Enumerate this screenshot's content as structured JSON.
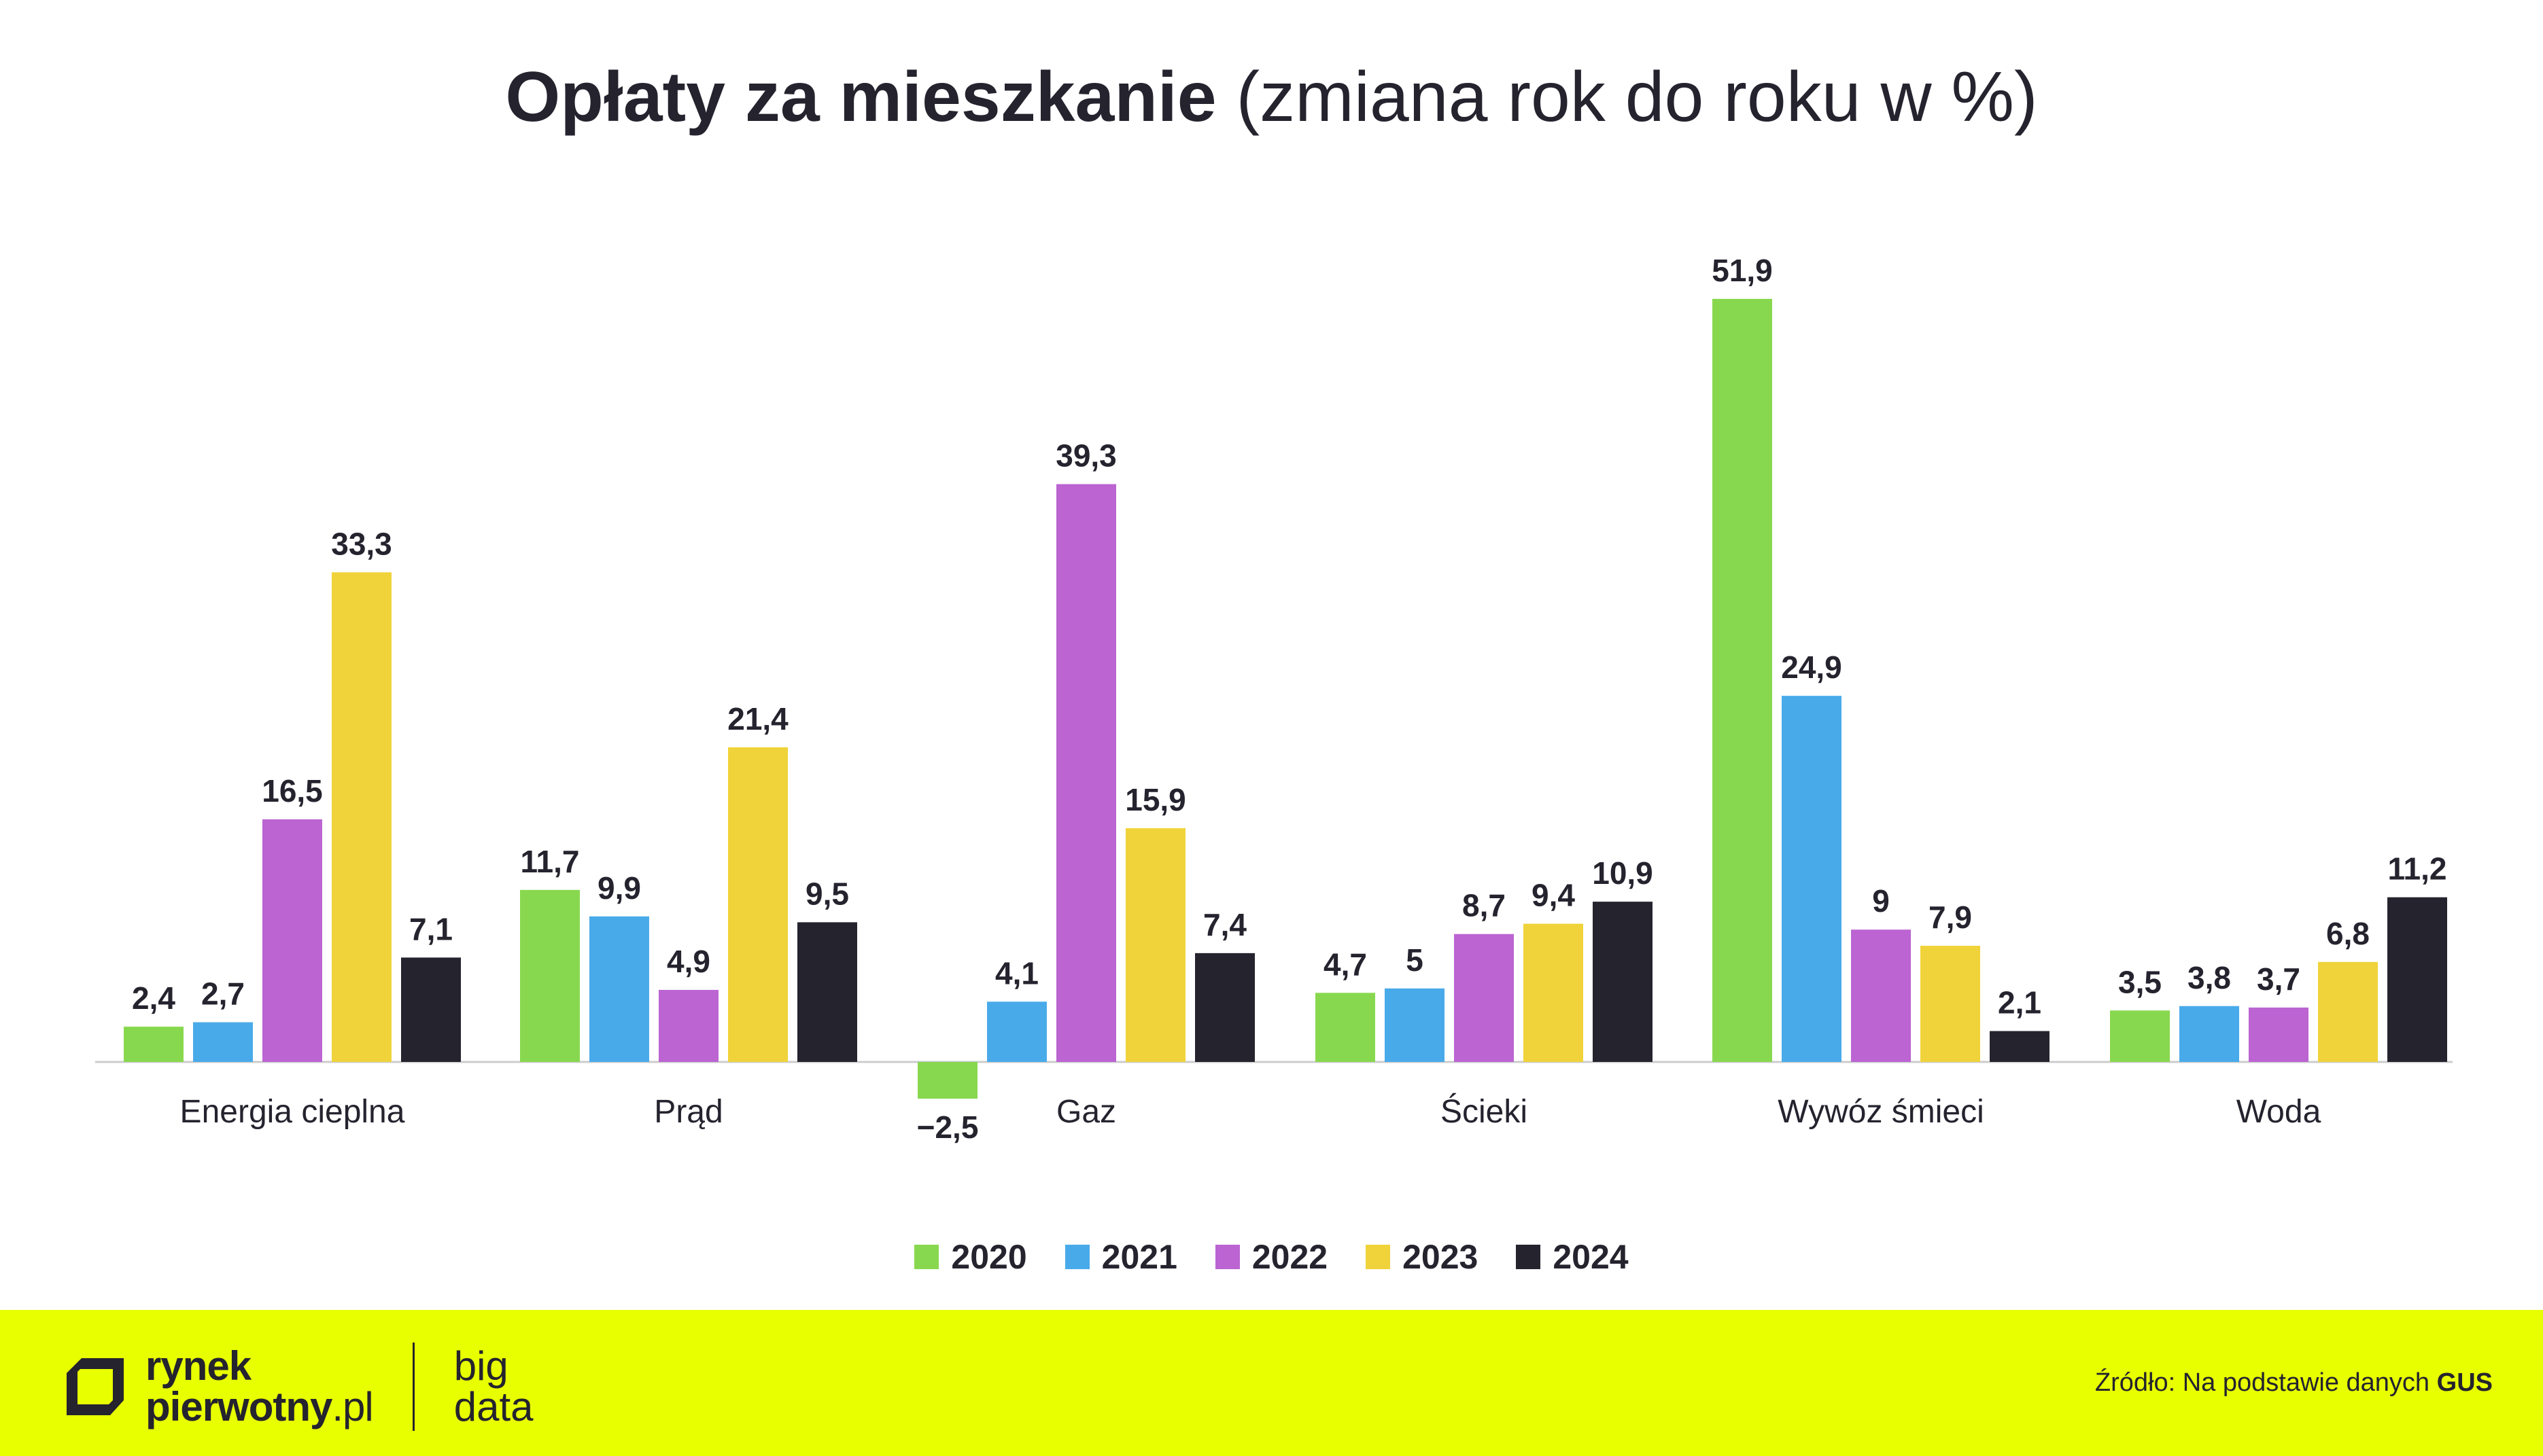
{
  "header": {
    "title_bold": "Opłaty za mieszkanie",
    "title_light": "(zmiana rok do roku w %)"
  },
  "colors": {
    "2020": "#88d84f",
    "2021": "#49aaea",
    "2022": "#bb64d2",
    "2023": "#f0d33a",
    "2024": "#24232e",
    "footer_bg": "#e8ff00",
    "text": "#24232e",
    "axis": "#cccccc"
  },
  "chart_data": {
    "type": "bar",
    "title": "Opłaty za mieszkanie (zmiana rok do roku w %)",
    "categories": [
      "Energia cieplna",
      "Prąd",
      "Gaz",
      "Ścieki",
      "Wywóz śmieci",
      "Woda"
    ],
    "series": [
      {
        "name": "2020",
        "values": [
          2.4,
          11.7,
          -2.5,
          4.7,
          51.9,
          3.5
        ],
        "labels": [
          "2,4",
          "11,7",
          "−2,5",
          "4,7",
          "51,9",
          "3,5"
        ]
      },
      {
        "name": "2021",
        "values": [
          2.7,
          9.9,
          4.1,
          5,
          24.9,
          3.8
        ],
        "labels": [
          "2,7",
          "9,9",
          "4,1",
          "5",
          "24,9",
          "3,8"
        ]
      },
      {
        "name": "2022",
        "values": [
          16.5,
          4.9,
          39.3,
          8.7,
          9,
          3.7
        ],
        "labels": [
          "16,5",
          "4,9",
          "39,3",
          "8,7",
          "9",
          "3,7"
        ]
      },
      {
        "name": "2023",
        "values": [
          33.3,
          21.4,
          15.9,
          9.4,
          7.9,
          6.8
        ],
        "labels": [
          "33,3",
          "21,4",
          "15,9",
          "9,4",
          "7,9",
          "6,8"
        ]
      },
      {
        "name": "2024",
        "values": [
          7.1,
          9.5,
          7.4,
          10.9,
          2.1,
          11.2
        ],
        "labels": [
          "7,1",
          "9,5",
          "7,4",
          "10,9",
          "2,1",
          "11,2"
        ]
      }
    ],
    "grid": false,
    "legend_position": "bottom"
  },
  "legend": [
    {
      "label": "2020",
      "color": "#88d84f"
    },
    {
      "label": "2021",
      "color": "#49aaea"
    },
    {
      "label": "2022",
      "color": "#bb64d2"
    },
    {
      "label": "2023",
      "color": "#f0d33a"
    },
    {
      "label": "2024",
      "color": "#24232e"
    }
  ],
  "footer": {
    "brand_line1": "rynek",
    "brand_line2_bold": "pierwotny",
    "brand_line2_light": ".pl",
    "bigdata_line1": "big",
    "bigdata_line2": "data",
    "source_prefix": "Źródło: Na podstawie danych",
    "source_bold": "GUS"
  }
}
